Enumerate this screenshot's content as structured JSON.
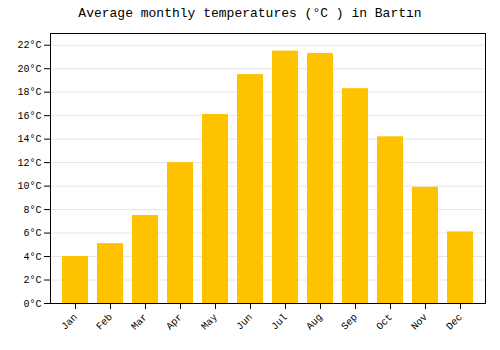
{
  "chart_data": {
    "type": "bar",
    "title": "Average monthly temperatures (°C ) in Bartın",
    "categories": [
      "Jan",
      "Feb",
      "Mar",
      "Apr",
      "May",
      "Jun",
      "Jul",
      "Aug",
      "Sep",
      "Oct",
      "Nov",
      "Dec"
    ],
    "values": [
      4.0,
      5.1,
      7.5,
      12.0,
      16.1,
      19.5,
      21.5,
      21.3,
      18.3,
      14.2,
      9.9,
      6.1
    ],
    "color": "#FFC200",
    "ylim": [
      0,
      23
    ],
    "yticks": [
      {
        "value": 0,
        "label": "0°C"
      },
      {
        "value": 2,
        "label": "2°C"
      },
      {
        "value": 4,
        "label": "4°C"
      },
      {
        "value": 6,
        "label": "6°C"
      },
      {
        "value": 8,
        "label": "8°C"
      },
      {
        "value": 10,
        "label": "10°C"
      },
      {
        "value": 12,
        "label": "12°C"
      },
      {
        "value": 14,
        "label": "14°C"
      },
      {
        "value": 16,
        "label": "16°C"
      },
      {
        "value": 18,
        "label": "18°C"
      },
      {
        "value": 20,
        "label": "20°C"
      },
      {
        "value": 22,
        "label": "22°C"
      }
    ],
    "grid": true
  }
}
